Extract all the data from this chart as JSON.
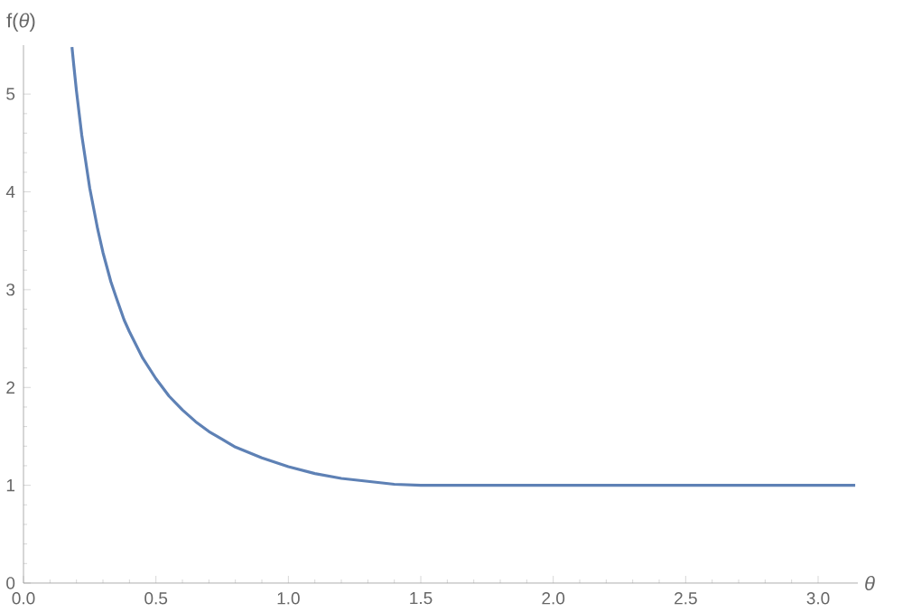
{
  "chart_data": {
    "type": "line",
    "xlabel": "*θ*",
    "ylabel": "f(*θ*)",
    "series": [
      {
        "color": "#5e81b5",
        "x": [
          0.183,
          0.19,
          0.2,
          0.22,
          0.25,
          0.28,
          0.3,
          0.33,
          0.35,
          0.38,
          0.4,
          0.45,
          0.5,
          0.55,
          0.6,
          0.65,
          0.7,
          0.75,
          0.8,
          0.9,
          1.0,
          1.1,
          1.2,
          1.3,
          1.4,
          1.5,
          1.57,
          2.0,
          2.5,
          3.14
        ],
        "values": [
          5.48,
          5.29,
          5.03,
          4.58,
          4.04,
          3.62,
          3.38,
          3.08,
          2.92,
          2.69,
          2.57,
          2.3,
          2.09,
          1.91,
          1.77,
          1.65,
          1.55,
          1.47,
          1.39,
          1.28,
          1.19,
          1.12,
          1.07,
          1.04,
          1.01,
          1.0,
          1.0,
          1.0,
          1.0,
          1.0
        ]
      }
    ],
    "xlim": [
      0,
      3.15
    ],
    "ylim": [
      0,
      5.5
    ],
    "xticks": [
      {
        "value": 0,
        "label": "0.0"
      },
      0.5,
      {
        "value": 1,
        "label": "1.0"
      },
      1.5,
      {
        "value": 2,
        "label": "2.0"
      },
      2.5,
      {
        "value": 3,
        "label": "3.0"
      }
    ],
    "yticks": [
      0,
      1,
      2,
      3,
      4,
      5
    ],
    "grid": false,
    "marker": "none",
    "line_style": "solid"
  }
}
